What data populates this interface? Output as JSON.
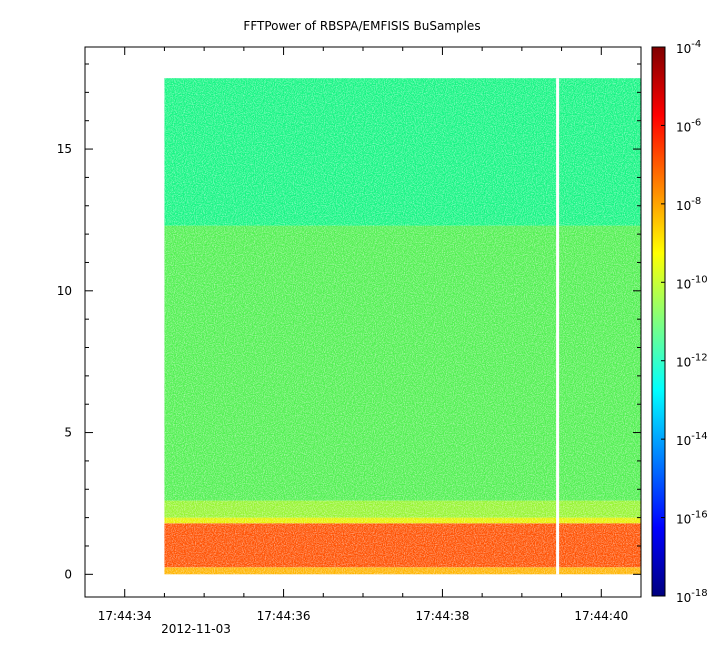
{
  "chart_data": {
    "type": "heatmap",
    "title": "FFTPower of RBSPA/EMFISIS  BuSamples",
    "x": {
      "kind": "time",
      "date": "2012-11-03",
      "range": [
        "17:44:33.5",
        "17:44:40.5"
      ],
      "ticks": [
        "17:44:34",
        "17:44:36",
        "17:44:38",
        "17:44:40"
      ],
      "minor_ticks": [
        "17:44:33.5",
        "17:44:34.5",
        "17:44:35",
        "17:44:35.5",
        "17:44:36.5",
        "17:44:37",
        "17:44:37.5",
        "17:44:38.5",
        "17:44:39",
        "17:44:39.5",
        "17:44:40.5"
      ],
      "date_label": "2012-11-03"
    },
    "y": {
      "range": [
        -0.8,
        18.6
      ],
      "ticks": [
        0,
        5,
        10,
        15
      ],
      "tick_labels": [
        "0",
        "5",
        "10",
        "15"
      ]
    },
    "colorbar": {
      "scale": "log",
      "range": [
        1e-18,
        0.0001
      ],
      "tick_exponents": [
        -4,
        -6,
        -8,
        -10,
        -12,
        -14,
        -16,
        -18
      ],
      "tick_base": "10",
      "colormap": [
        "#00007f",
        "#0000ff",
        "#007fff",
        "#00ffff",
        "#7fff7f",
        "#ffff00",
        "#ff7f00",
        "#ff0000",
        "#7f0000"
      ]
    },
    "data_extent": {
      "t_start": "17:44:34.50",
      "t_end": "17:44:40.50",
      "f_min": 0.0,
      "f_max": 17.5
    },
    "gaps": [
      {
        "t": "17:44:39.45"
      }
    ],
    "bands": [
      {
        "f_from": 0.0,
        "f_to": 0.25,
        "log10_power": -7.0,
        "color": "#ffb400"
      },
      {
        "f_from": 0.25,
        "f_to": 1.8,
        "log10_power": -5.2,
        "color": "#ff5000"
      },
      {
        "f_from": 1.8,
        "f_to": 2.0,
        "log10_power": -7.8,
        "color": "#e6f000"
      },
      {
        "f_from": 2.0,
        "f_to": 2.6,
        "log10_power": -9.5,
        "color": "#96f532"
      },
      {
        "f_from": 2.6,
        "f_to": 12.3,
        "log10_power": -10.3,
        "color": "#50f050"
      },
      {
        "f_from": 12.3,
        "f_to": 17.5,
        "log10_power": -11.5,
        "color": "#14f582"
      }
    ],
    "grid": false,
    "legend": "none"
  }
}
